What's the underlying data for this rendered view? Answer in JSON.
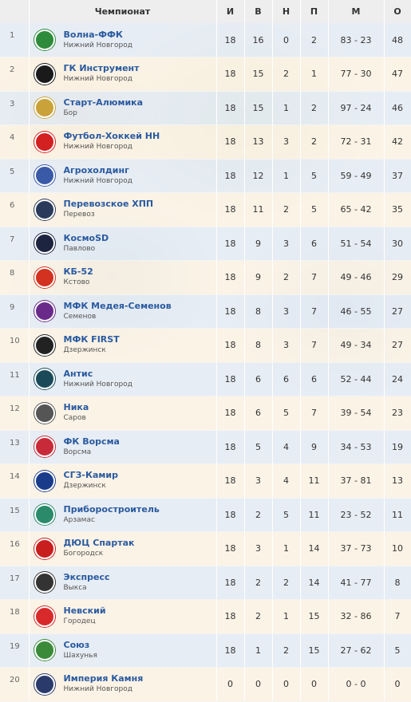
{
  "header": {
    "pos": "",
    "title": "Чемпионат",
    "col_i": "И",
    "col_v": "В",
    "col_n": "Н",
    "col_p": "П",
    "col_m": "М",
    "col_o": "О"
  },
  "rows": [
    {
      "pos": "1",
      "name": "Волна-ФФК",
      "city": "Нижний Новгород",
      "i": "18",
      "v": "16",
      "n": "0",
      "p": "2",
      "m": "83 - 23",
      "o": "48",
      "logo_color": "#2e8b3a",
      "logo": "football-club-logo"
    },
    {
      "pos": "2",
      "name": "ГК Инструмент",
      "city": "Нижний Новгород",
      "i": "18",
      "v": "15",
      "n": "2",
      "p": "1",
      "m": "77 - 30",
      "o": "47",
      "logo_color": "#1a1a1a",
      "logo": "football-club-logo"
    },
    {
      "pos": "3",
      "name": "Старт-Алюмика",
      "city": "Бор",
      "i": "18",
      "v": "15",
      "n": "1",
      "p": "2",
      "m": "97 - 24",
      "o": "46",
      "logo_color": "#c9a23a",
      "logo": "football-club-logo"
    },
    {
      "pos": "4",
      "name": "Футбол-Хоккей НН",
      "city": "Нижний Новгород",
      "i": "18",
      "v": "13",
      "n": "3",
      "p": "2",
      "m": "72 - 31",
      "o": "42",
      "logo_color": "#d32020",
      "logo": "football-club-logo"
    },
    {
      "pos": "5",
      "name": "Агрохолдинг",
      "city": "Нижний Новгород",
      "i": "18",
      "v": "12",
      "n": "1",
      "p": "5",
      "m": "59 - 49",
      "o": "37",
      "logo_color": "#3a5aa8",
      "logo": "football-club-logo"
    },
    {
      "pos": "6",
      "name": "Перевозское ХПП",
      "city": "Перевоз",
      "i": "18",
      "v": "11",
      "n": "2",
      "p": "5",
      "m": "65 - 42",
      "o": "35",
      "logo_color": "#2a3a5a",
      "logo": "football-club-logo"
    },
    {
      "pos": "7",
      "name": "КосмоSD",
      "city": "Павлово",
      "i": "18",
      "v": "9",
      "n": "3",
      "p": "6",
      "m": "51 - 54",
      "o": "30",
      "logo_color": "#1c2440",
      "logo": "football-club-logo"
    },
    {
      "pos": "8",
      "name": "КБ-52",
      "city": "Кстово",
      "i": "18",
      "v": "9",
      "n": "2",
      "p": "7",
      "m": "49 - 46",
      "o": "29",
      "logo_color": "#d2321f",
      "logo": "football-club-logo"
    },
    {
      "pos": "9",
      "name": "МФК Медея-Семенов",
      "city": "Семенов",
      "i": "18",
      "v": "8",
      "n": "3",
      "p": "7",
      "m": "46 - 55",
      "o": "27",
      "logo_color": "#6a2a8a",
      "logo": "football-club-logo"
    },
    {
      "pos": "10",
      "name": "МФК FIRST",
      "city": "Дзержинск",
      "i": "18",
      "v": "8",
      "n": "3",
      "p": "7",
      "m": "49 - 34",
      "o": "27",
      "logo_color": "#222222",
      "logo": "football-club-logo"
    },
    {
      "pos": "11",
      "name": "Антис",
      "city": "Нижний Новгород",
      "i": "18",
      "v": "6",
      "n": "6",
      "p": "6",
      "m": "52 - 44",
      "o": "24",
      "logo_color": "#1a4a5a",
      "logo": "football-club-logo"
    },
    {
      "pos": "12",
      "name": "Ника",
      "city": "Саров",
      "i": "18",
      "v": "6",
      "n": "5",
      "p": "7",
      "m": "39 - 54",
      "o": "23",
      "logo_color": "#555555",
      "logo": "football-club-logo"
    },
    {
      "pos": "13",
      "name": "ФК Ворсма",
      "city": "Ворсма",
      "i": "18",
      "v": "5",
      "n": "4",
      "p": "9",
      "m": "34 - 53",
      "o": "19",
      "logo_color": "#c82a3a",
      "logo": "football-club-logo"
    },
    {
      "pos": "14",
      "name": "СГЗ-Камир",
      "city": "Дзержинск",
      "i": "18",
      "v": "3",
      "n": "4",
      "p": "11",
      "m": "37 - 81",
      "o": "13",
      "logo_color": "#1a3a8a",
      "logo": "football-club-logo"
    },
    {
      "pos": "15",
      "name": "Приборостроитель",
      "city": "Арзамас",
      "i": "18",
      "v": "2",
      "n": "5",
      "p": "11",
      "m": "23 - 52",
      "o": "11",
      "logo_color": "#2a8a6a",
      "logo": "football-club-logo"
    },
    {
      "pos": "16",
      "name": "ДЮЦ Спартак",
      "city": "Богородск",
      "i": "18",
      "v": "3",
      "n": "1",
      "p": "14",
      "m": "37 - 73",
      "o": "10",
      "logo_color": "#c81e1e",
      "logo": "football-club-logo"
    },
    {
      "pos": "17",
      "name": "Экспресс",
      "city": "Выкса",
      "i": "18",
      "v": "2",
      "n": "2",
      "p": "14",
      "m": "41 - 77",
      "o": "8",
      "logo_color": "#333333",
      "logo": "football-club-logo"
    },
    {
      "pos": "18",
      "name": "Невский",
      "city": "Городец",
      "i": "18",
      "v": "2",
      "n": "1",
      "p": "15",
      "m": "32 - 86",
      "o": "7",
      "logo_color": "#d82a2a",
      "logo": "football-club-logo"
    },
    {
      "pos": "19",
      "name": "Союз",
      "city": "Шахунья",
      "i": "18",
      "v": "1",
      "n": "2",
      "p": "15",
      "m": "27 - 62",
      "o": "5",
      "logo_color": "#3a8a3a",
      "logo": "football-club-logo"
    },
    {
      "pos": "20",
      "name": "Империя Камня",
      "city": "Нижний Новгород",
      "i": "0",
      "v": "0",
      "n": "0",
      "p": "0",
      "m": "0 - 0",
      "o": "0",
      "logo_color": "#2a3a6a",
      "logo": "football-club-logo"
    }
  ]
}
